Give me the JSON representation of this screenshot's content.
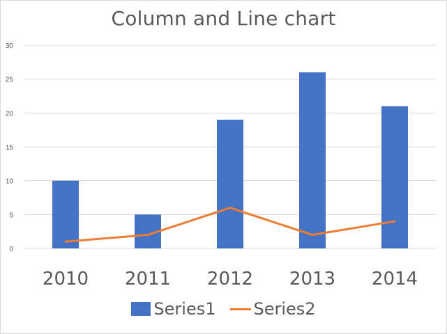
{
  "chart_data": {
    "type": "bar",
    "title": "Column and Line chart",
    "categories": [
      "2010",
      "2011",
      "2012",
      "2013",
      "2014"
    ],
    "series": [
      {
        "name": "Series1",
        "type": "bar",
        "values": [
          10,
          5,
          19,
          26,
          21
        ],
        "color": "#4472c4"
      },
      {
        "name": "Series2",
        "type": "line",
        "values": [
          1,
          2,
          6,
          2,
          4
        ],
        "color": "#ed7d31"
      }
    ],
    "yticks": [
      "0",
      "5",
      "10",
      "15",
      "20",
      "25",
      "30"
    ],
    "ylim": [
      0,
      30
    ],
    "grid": true,
    "legend_position": "bottom"
  }
}
